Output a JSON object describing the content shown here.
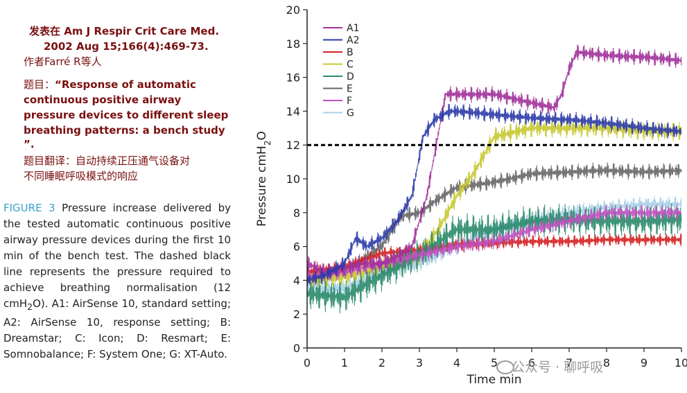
{
  "source": {
    "line1": "发表在 Am J Respir Crit Care Med.",
    "line2": "2002 Aug 15;166(4):469-73.",
    "line3": "作者Farré R等人"
  },
  "title_cn": {
    "prefix": "题目：",
    "title_lines": [
      "“Response of automatic",
      "continuous positive airway",
      "pressure devices to different sleep",
      "breathing patterns: a bench study",
      "”."
    ],
    "translation_lines": [
      "题目翻译：自动持续正压通气设备对",
      "不同睡眠呼吸模式的响应"
    ]
  },
  "caption": {
    "fig_label": "FIGURE 3",
    "text": " Pressure increase delivered by the tested automatic continuous positive airway pressure devices during the first 10 min of the bench test. The dashed black line represents the pressure required to achieve breathing normalisation (12 cmH",
    "sub": "2",
    "text2": "O). A1: AirSense 10, standard setting; A2: AirSense 10, response setting; B: Dreamstar; C: Icon; D: Resmart; E: Somnobalance; F: System One; G: XT-Auto."
  },
  "watermark": {
    "text": "公众号 · 聊呼吸"
  },
  "chart_data": {
    "type": "line",
    "xlabel": "Time min",
    "ylabel": "Pressure cmH2O",
    "ylabel_main": "Pressure cmH",
    "ylabel_sub": "2",
    "ylabel_end": "O",
    "xlim": [
      0,
      10
    ],
    "ylim": [
      0,
      20
    ],
    "xticks": [
      "0",
      "1",
      "2",
      "3",
      "4",
      "5",
      "6",
      "7",
      "8",
      "9",
      "10"
    ],
    "yticks": [
      "0",
      "2",
      "4",
      "6",
      "8",
      "10",
      "12",
      "14",
      "16",
      "18",
      "20"
    ],
    "threshold": {
      "y": 12,
      "style": "dashed",
      "color": "#000000"
    },
    "legend_position": "top-left",
    "series": [
      {
        "name": "A1",
        "color": "#a0309a",
        "x": [
          0,
          0.5,
          1,
          1.5,
          2,
          2.5,
          2.8,
          3.2,
          3.7,
          4,
          5,
          6,
          6.6,
          6.8,
          7,
          7.2,
          8,
          9,
          10
        ],
        "y": [
          5,
          4.5,
          4.7,
          5,
          5,
          5.5,
          6,
          9,
          15,
          15,
          15,
          14.5,
          14.2,
          15,
          16.5,
          17.5,
          17.3,
          17.2,
          17
        ],
        "amp": 0.5
      },
      {
        "name": "A2",
        "color": "#2a3aa8",
        "x": [
          0,
          0.5,
          1,
          1.3,
          1.6,
          2,
          2.4,
          2.8,
          3.1,
          3.4,
          3.8,
          4,
          5,
          6,
          7,
          8,
          9,
          10
        ],
        "y": [
          4,
          4.3,
          5,
          6.5,
          6,
          6.5,
          7.5,
          9,
          12.5,
          13.5,
          14,
          14,
          13.8,
          13.6,
          13.5,
          13.3,
          13,
          12.8
        ],
        "amp": 0.5
      },
      {
        "name": "B",
        "color": "#d42020",
        "x": [
          0,
          1,
          2,
          3,
          4,
          5,
          6,
          7,
          8,
          9,
          10
        ],
        "y": [
          4.5,
          4.8,
          5.6,
          5.8,
          6.1,
          6.2,
          6.3,
          6.3,
          6.4,
          6.4,
          6.4
        ],
        "amp": 0.4
      },
      {
        "name": "C",
        "color": "#c8c830",
        "x": [
          0,
          1,
          2,
          3,
          3.5,
          4,
          4.5,
          5,
          6,
          7,
          8,
          9,
          10
        ],
        "y": [
          4,
          4.2,
          4.8,
          5.5,
          7,
          9,
          10.5,
          12.5,
          13,
          13,
          13,
          12.8,
          12.8
        ],
        "amp": 0.6
      },
      {
        "name": "D",
        "color": "#2a8a6a",
        "x": [
          0,
          1,
          2,
          3,
          4,
          5,
          6,
          7,
          8,
          9,
          10
        ],
        "y": [
          3.2,
          3,
          4.3,
          5.5,
          7,
          7,
          7.5,
          7.6,
          7.5,
          7.5,
          7.6
        ],
        "amp": 1.0
      },
      {
        "name": "E",
        "color": "#666666",
        "x": [
          0,
          1,
          2,
          2.5,
          3,
          3.5,
          4,
          5,
          6,
          7,
          8,
          9,
          10
        ],
        "y": [
          4.2,
          4.5,
          6,
          7.8,
          8,
          8.8,
          9.5,
          9.8,
          10.3,
          10.4,
          10.5,
          10.4,
          10.5
        ],
        "amp": 0.5
      },
      {
        "name": "F",
        "color": "#c050c0",
        "x": [
          0,
          1,
          2,
          3,
          4,
          5,
          6,
          7,
          8,
          9,
          10
        ],
        "y": [
          4.2,
          4.5,
          5,
          5.5,
          6,
          6.3,
          7,
          7.5,
          8,
          8,
          8
        ],
        "amp": 0.5
      },
      {
        "name": "G",
        "color": "#a8d0e8",
        "x": [
          0,
          1,
          2,
          3,
          4,
          5,
          6,
          7,
          8,
          9,
          10
        ],
        "y": [
          3.5,
          3.5,
          4.5,
          5,
          6,
          7,
          7.5,
          8,
          8.3,
          8.5,
          8.5
        ],
        "amp": 0.5
      }
    ]
  }
}
